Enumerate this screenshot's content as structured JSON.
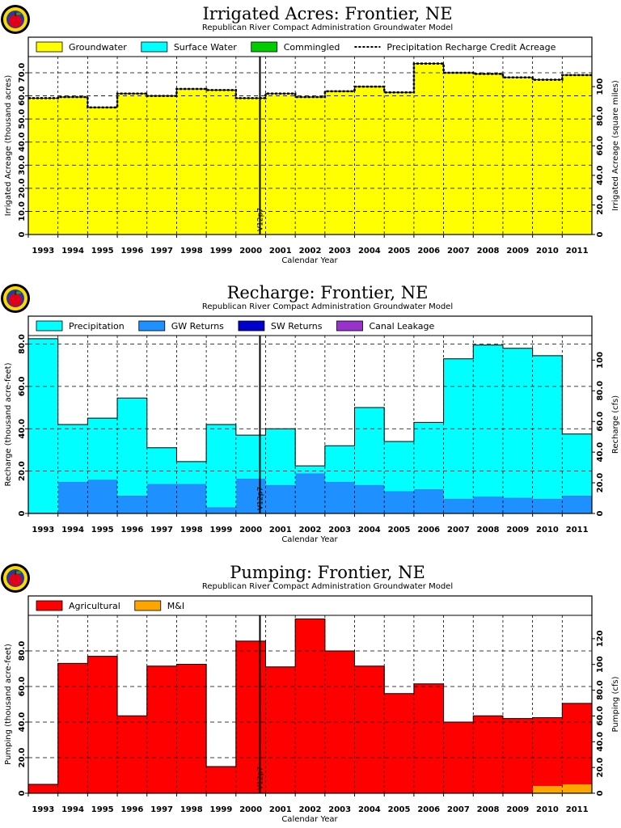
{
  "chart_data": [
    {
      "type": "area",
      "title": "Irrigated Acres: Frontier, NE",
      "subtitle": "Republican River Compact Administration Groundwater Model",
      "xlabel": "Calendar Year",
      "ylabel": "Irrigated Acreage (thousand acres)",
      "ylabel_right": "Irrigated Acreage (square miles)",
      "categories": [
        "1993",
        "1994",
        "1995",
        "1996",
        "1997",
        "1998",
        "1999",
        "2000",
        "2001",
        "2002",
        "2003",
        "2004",
        "2005",
        "2006",
        "2007",
        "2008",
        "2009",
        "2010",
        "2011"
      ],
      "ylim": [
        0,
        77
      ],
      "yticks": [
        0,
        10,
        20,
        30,
        40,
        50,
        60,
        70
      ],
      "ytick_labels": [
        "0",
        "10.0",
        "20.0",
        "30.0",
        "40.0",
        "50.0",
        "60.0",
        "70.0"
      ],
      "yticks_right": [
        0,
        20,
        40,
        60,
        80,
        100
      ],
      "ytick_labels_right": [
        "0",
        "20.0",
        "40.0",
        "60.0",
        "80.0",
        "100"
      ],
      "right_scale": 0.64,
      "marker_label": "V12p7",
      "legend": [
        {
          "name": "Groundwater",
          "color": "#ffff00",
          "style": "box"
        },
        {
          "name": "Surface Water",
          "color": "#00ffff",
          "style": "box"
        },
        {
          "name": "Commingled",
          "color": "#00cc00",
          "style": "box"
        },
        {
          "name": "Precipitation Recharge Credit Acreage",
          "color": "#000000",
          "style": "dashed"
        }
      ],
      "series": [
        {
          "name": "Groundwater",
          "color": "#ffff00",
          "values": [
            59,
            59.5,
            55,
            61,
            60,
            63,
            62.5,
            59,
            61,
            59.5,
            62,
            64,
            61.5,
            74,
            70,
            69.5,
            68,
            67,
            69
          ]
        },
        {
          "name": "Surface Water",
          "color": "#00ffff",
          "values": [
            0,
            0,
            0,
            0,
            0,
            0,
            0,
            0,
            0,
            0,
            0,
            0,
            0,
            0,
            0,
            0,
            0,
            0,
            0
          ]
        },
        {
          "name": "Commingled",
          "color": "#00cc00",
          "values": [
            0,
            0,
            0,
            0,
            0,
            0,
            0,
            0,
            0,
            0,
            0,
            0,
            0,
            0,
            0,
            0,
            0,
            0,
            0
          ]
        }
      ],
      "line": {
        "name": "Precipitation Recharge Credit Acreage",
        "values": [
          59,
          59.5,
          55,
          61,
          60,
          63,
          62.5,
          59,
          61,
          59.5,
          62,
          64,
          61.5,
          74,
          70,
          69.5,
          68,
          67,
          69
        ]
      }
    },
    {
      "type": "area",
      "title": "Recharge: Frontier, NE",
      "subtitle": "Republican River Compact Administration Groundwater Model",
      "xlabel": "Calendar Year",
      "ylabel": "Recharge (thousand acre-feet)",
      "ylabel_right": "Recharge (cfs)",
      "categories": [
        "1993",
        "1994",
        "1995",
        "1996",
        "1997",
        "1998",
        "1999",
        "2000",
        "2001",
        "2002",
        "2003",
        "2004",
        "2005",
        "2006",
        "2007",
        "2008",
        "2009",
        "2010",
        "2011"
      ],
      "ylim": [
        0,
        84
      ],
      "yticks": [
        0,
        20,
        40,
        60,
        80
      ],
      "ytick_labels": [
        "0",
        "20.0",
        "40.0",
        "60.0",
        "80.0"
      ],
      "yticks_right": [
        0,
        20,
        40,
        60,
        80,
        100
      ],
      "ytick_labels_right": [
        "0",
        "20.0",
        "40.0",
        "60.0",
        "80.0",
        "100"
      ],
      "right_scale": 0.724,
      "marker_label": "V12p7",
      "legend": [
        {
          "name": "Precipitation",
          "color": "#00ffff",
          "style": "box"
        },
        {
          "name": "GW Returns",
          "color": "#1e90ff",
          "style": "box"
        },
        {
          "name": "SW Returns",
          "color": "#0000cd",
          "style": "box"
        },
        {
          "name": "Canal Leakage",
          "color": "#9932cc",
          "style": "box"
        }
      ],
      "series": [
        {
          "name": "GW Returns",
          "color": "#1e90ff",
          "values": [
            0.5,
            15,
            16,
            8.5,
            14,
            14,
            3,
            16.5,
            13.5,
            19,
            15,
            13.5,
            10.5,
            11.5,
            7,
            8,
            7.5,
            7,
            8.5
          ]
        },
        {
          "name": "SW Returns",
          "color": "#0000cd",
          "values": [
            0,
            0,
            0,
            0,
            0,
            0,
            0,
            0,
            0,
            0,
            0,
            0,
            0,
            0,
            0,
            0,
            0,
            0,
            0
          ]
        },
        {
          "name": "Canal Leakage",
          "color": "#9932cc",
          "values": [
            0,
            0,
            0,
            0,
            0,
            0,
            0,
            0,
            0,
            0,
            0,
            0,
            0,
            0,
            0,
            0,
            0,
            0,
            0
          ]
        },
        {
          "name": "Precipitation",
          "color": "#00ffff",
          "values": [
            82,
            27,
            29,
            46,
            17,
            10.5,
            39,
            20.5,
            26.5,
            3.5,
            17,
            36.5,
            23.5,
            31.5,
            66,
            71.5,
            70.5,
            67.5,
            29
          ]
        }
      ]
    },
    {
      "type": "area",
      "title": "Pumping: Frontier, NE",
      "subtitle": "Republican River Compact Administration Groundwater Model",
      "xlabel": "Calendar Year",
      "ylabel": "Pumping (thousand acre-feet)",
      "ylabel_right": "Pumping (cfs)",
      "categories": [
        "1993",
        "1994",
        "1995",
        "1996",
        "1997",
        "1998",
        "1999",
        "2000",
        "2001",
        "2002",
        "2003",
        "2004",
        "2005",
        "2006",
        "2007",
        "2008",
        "2009",
        "2010",
        "2011"
      ],
      "ylim": [
        0,
        100
      ],
      "yticks": [
        0,
        20,
        40,
        60,
        80
      ],
      "ytick_labels": [
        "0",
        "20.0",
        "40.0",
        "60.0",
        "80.0"
      ],
      "yticks_right": [
        0,
        20,
        40,
        60,
        80,
        100,
        120
      ],
      "ytick_labels_right": [
        "0",
        "20.0",
        "40.0",
        "60.0",
        "80.0",
        "100",
        "120"
      ],
      "right_scale": 0.724,
      "marker_label": "V12p7",
      "legend": [
        {
          "name": "Agricultural",
          "color": "#ff0000",
          "style": "box"
        },
        {
          "name": "M&I",
          "color": "#ffa500",
          "style": "box"
        }
      ],
      "series": [
        {
          "name": "M&I",
          "color": "#ffa500",
          "values": [
            0,
            0,
            0,
            0,
            0,
            0,
            0,
            0,
            0,
            0,
            0,
            0,
            0,
            0,
            0,
            0,
            0,
            4,
            5
          ]
        },
        {
          "name": "Agricultural",
          "color": "#ff0000",
          "values": [
            5,
            73,
            77,
            43.5,
            71.5,
            72.5,
            15,
            85.5,
            71,
            98,
            80,
            71.5,
            56,
            61.5,
            40,
            43.5,
            42,
            38.5,
            45.5
          ]
        }
      ]
    }
  ]
}
